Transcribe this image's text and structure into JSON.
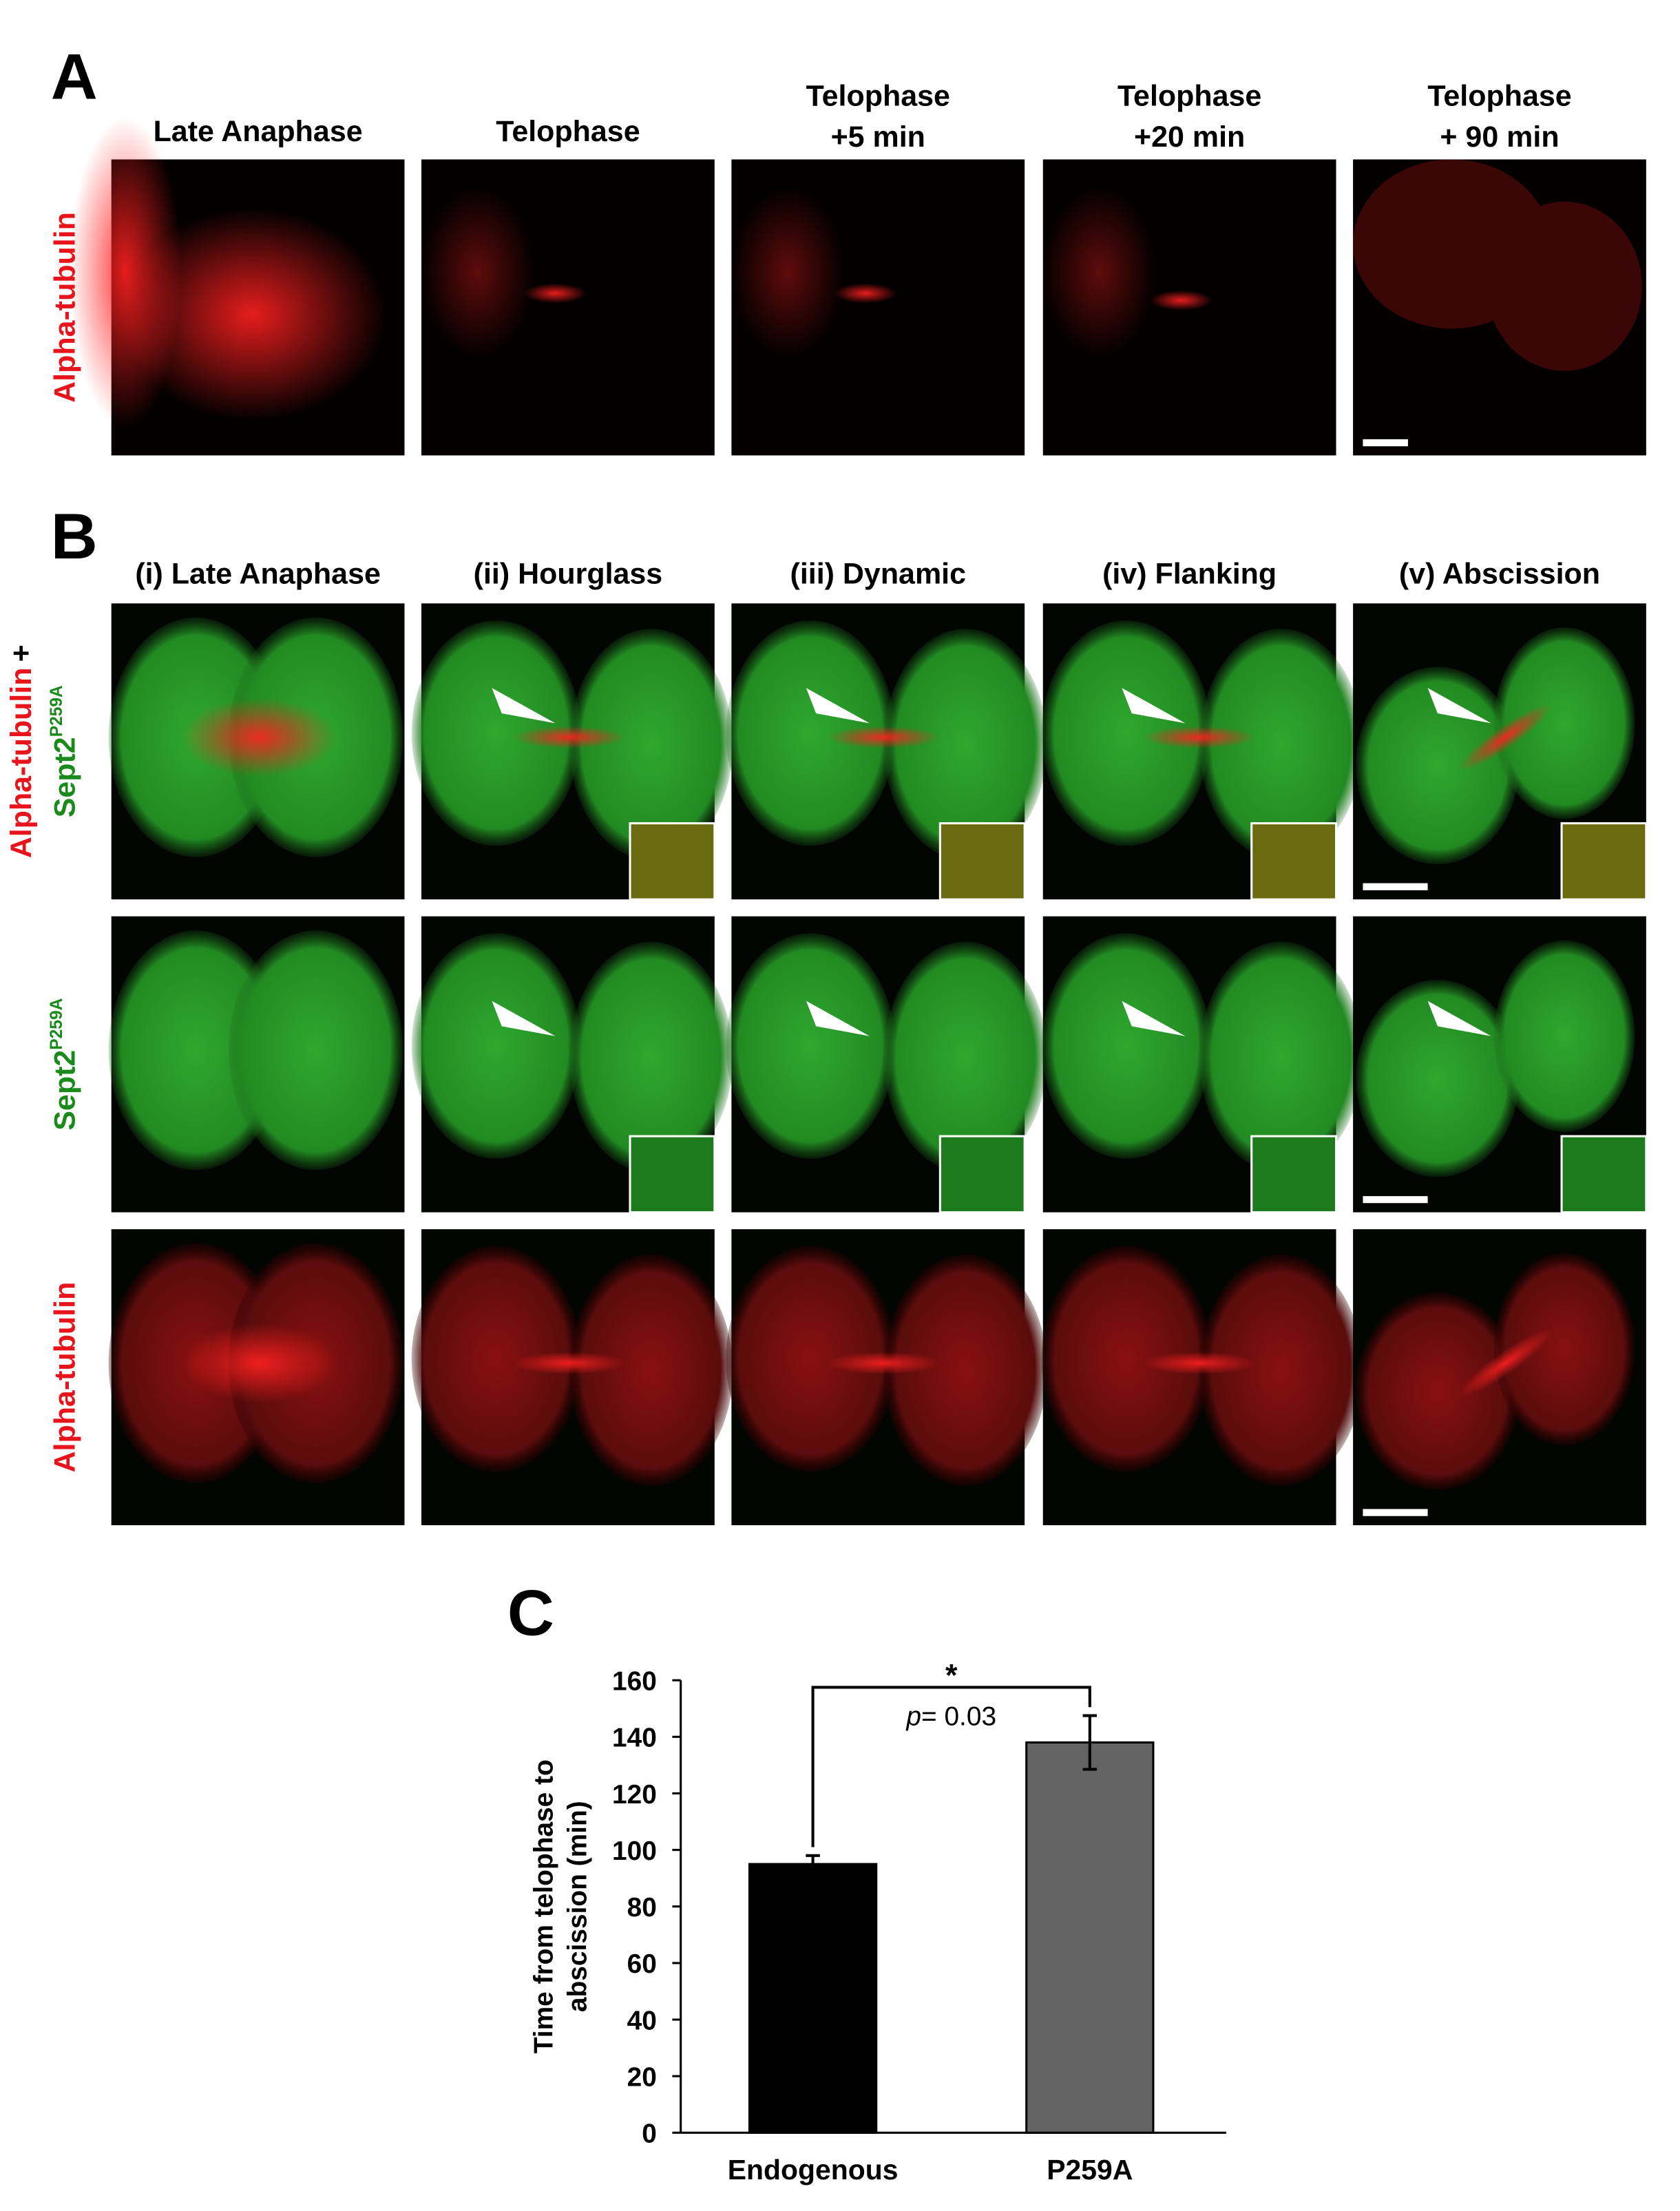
{
  "panel_a": {
    "label": "A",
    "columns": [
      [
        "Late Anaphase"
      ],
      [
        "Telophase"
      ],
      [
        "Telophase",
        "+5 min"
      ],
      [
        "Telophase",
        "+20 min"
      ],
      [
        "Telophase",
        "+ 90 min"
      ]
    ],
    "row_label": "Alpha-tubulin"
  },
  "panel_b": {
    "label": "B",
    "columns": [
      "(i) Late Anaphase",
      "(ii) Hourglass",
      "(iii) Dynamic",
      "(iv) Flanking",
      "(v) Abscission"
    ],
    "row_labels": [
      [
        "Alpha-tubulin",
        "+",
        "Sept2",
        "P259A"
      ],
      [
        "Sept2",
        "P259A"
      ],
      [
        "Alpha-tubulin"
      ]
    ]
  },
  "chart_data": {
    "type": "bar",
    "label": "C",
    "y_label": [
      "Time from telophase to",
      "abscission (min)"
    ],
    "categories": [
      "Endogenous",
      "P259A"
    ],
    "values": [
      95,
      138
    ],
    "errors": [
      3,
      9.5
    ],
    "colors": [
      "#000000",
      "#646464"
    ],
    "ylim": [
      0,
      160
    ],
    "yticks": [
      0,
      20,
      40,
      60,
      80,
      100,
      120,
      140,
      160
    ],
    "significance": "*",
    "p_label": "p",
    "p_value": "= 0.03"
  }
}
